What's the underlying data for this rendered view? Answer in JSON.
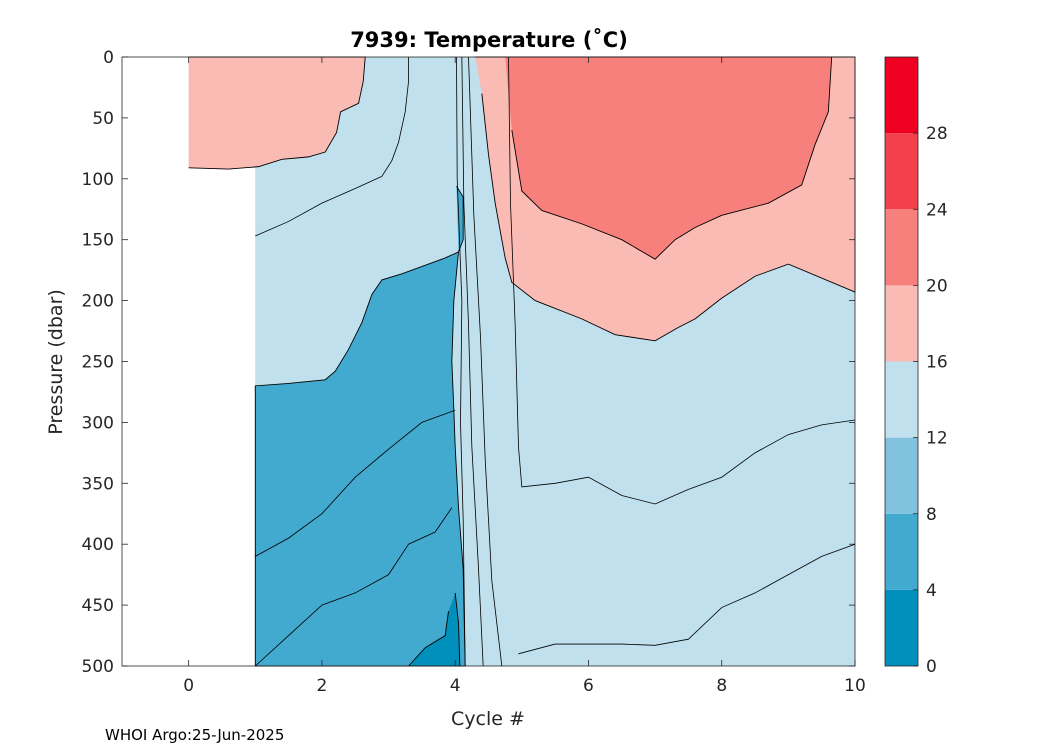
{
  "chart_data": {
    "type": "contour",
    "title": "7939:  Temperature (˚C)",
    "xlabel": "Cycle #",
    "ylabel": "Pressure (dbar)",
    "xlim": [
      -1,
      10
    ],
    "ylim": [
      0,
      500
    ],
    "y_reversed": true,
    "xticks": [
      "0",
      "2",
      "4",
      "6",
      "8",
      "10"
    ],
    "yticks": [
      "0",
      "50",
      "100",
      "150",
      "200",
      "250",
      "300",
      "350",
      "400",
      "450",
      "500"
    ],
    "grid": false,
    "colorbar": {
      "levels": [
        0,
        4,
        8,
        12,
        16,
        20,
        24,
        28,
        32
      ],
      "tick_labels": [
        "0",
        "4",
        "8",
        "12",
        "16",
        "20",
        "24",
        "28"
      ],
      "colors": [
        "#0090bb",
        "#42a9cf",
        "#81c3de",
        "#bfe0ec",
        "#fbbbb5",
        "#f8807c",
        "#f4404c",
        "#ef0023"
      ]
    },
    "contour_levels_C": [
      4,
      8,
      12,
      16,
      20
    ],
    "contour_polys": [
      {
        "level_C": 16,
        "pts": [
          [
            0,
            0
          ],
          [
            2.65,
            0
          ],
          [
            2.62,
            20
          ],
          [
            2.55,
            38
          ],
          [
            2.28,
            45
          ],
          [
            2.22,
            62
          ],
          [
            2.05,
            78
          ],
          [
            1.8,
            82
          ],
          [
            1.4,
            84
          ],
          [
            1.05,
            90
          ],
          [
            0.6,
            92
          ],
          [
            0,
            91
          ]
        ]
      },
      {
        "level_C": 16,
        "pts": [
          [
            4.3,
            0
          ],
          [
            10,
            0
          ],
          [
            10,
            193
          ],
          [
            9.0,
            170
          ],
          [
            8.5,
            180
          ],
          [
            8.0,
            198
          ],
          [
            7.6,
            215
          ],
          [
            7.35,
            222
          ],
          [
            7.0,
            233
          ],
          [
            6.4,
            228
          ],
          [
            5.9,
            215
          ],
          [
            5.2,
            200
          ],
          [
            4.85,
            185
          ],
          [
            4.75,
            165
          ],
          [
            4.6,
            120
          ],
          [
            4.5,
            80
          ],
          [
            4.4,
            30
          ]
        ]
      },
      {
        "level_C": 20,
        "pts": [
          [
            4.75,
            0
          ],
          [
            9.65,
            0
          ],
          [
            9.6,
            45
          ],
          [
            9.4,
            72
          ],
          [
            9.2,
            105
          ],
          [
            8.7,
            120
          ],
          [
            8.0,
            130
          ],
          [
            7.6,
            140
          ],
          [
            7.3,
            150
          ],
          [
            7.0,
            166
          ],
          [
            6.5,
            150
          ],
          [
            5.9,
            137
          ],
          [
            5.3,
            126
          ],
          [
            5.0,
            110
          ],
          [
            4.85,
            60
          ]
        ]
      },
      {
        "level_C": 8,
        "pts": [
          [
            4.02,
            106
          ],
          [
            4.12,
            115
          ],
          [
            4.12,
            150
          ],
          [
            4.05,
            160
          ],
          [
            3.85,
            165
          ],
          [
            3.6,
            170
          ],
          [
            3.2,
            178
          ],
          [
            2.9,
            183
          ],
          [
            2.75,
            195
          ],
          [
            2.6,
            218
          ],
          [
            2.4,
            240
          ],
          [
            2.2,
            258
          ],
          [
            2.05,
            265
          ],
          [
            1.5,
            268
          ],
          [
            1.0,
            270
          ],
          [
            1.0,
            500
          ],
          [
            4.15,
            500
          ],
          [
            4.12,
            420
          ],
          [
            4.05,
            370
          ],
          [
            4.0,
            320
          ],
          [
            3.98,
            290
          ],
          [
            3.95,
            250
          ],
          [
            3.98,
            200
          ],
          [
            4.05,
            160
          ]
        ]
      },
      {
        "level_C": 4,
        "pts": [
          [
            4.0,
            440
          ],
          [
            4.05,
            465
          ],
          [
            4.07,
            500
          ],
          [
            3.3,
            500
          ],
          [
            3.55,
            485
          ],
          [
            3.85,
            475
          ],
          [
            3.9,
            455
          ]
        ]
      }
    ]
  },
  "footer": "WHOI Argo:25-Jun-2025"
}
